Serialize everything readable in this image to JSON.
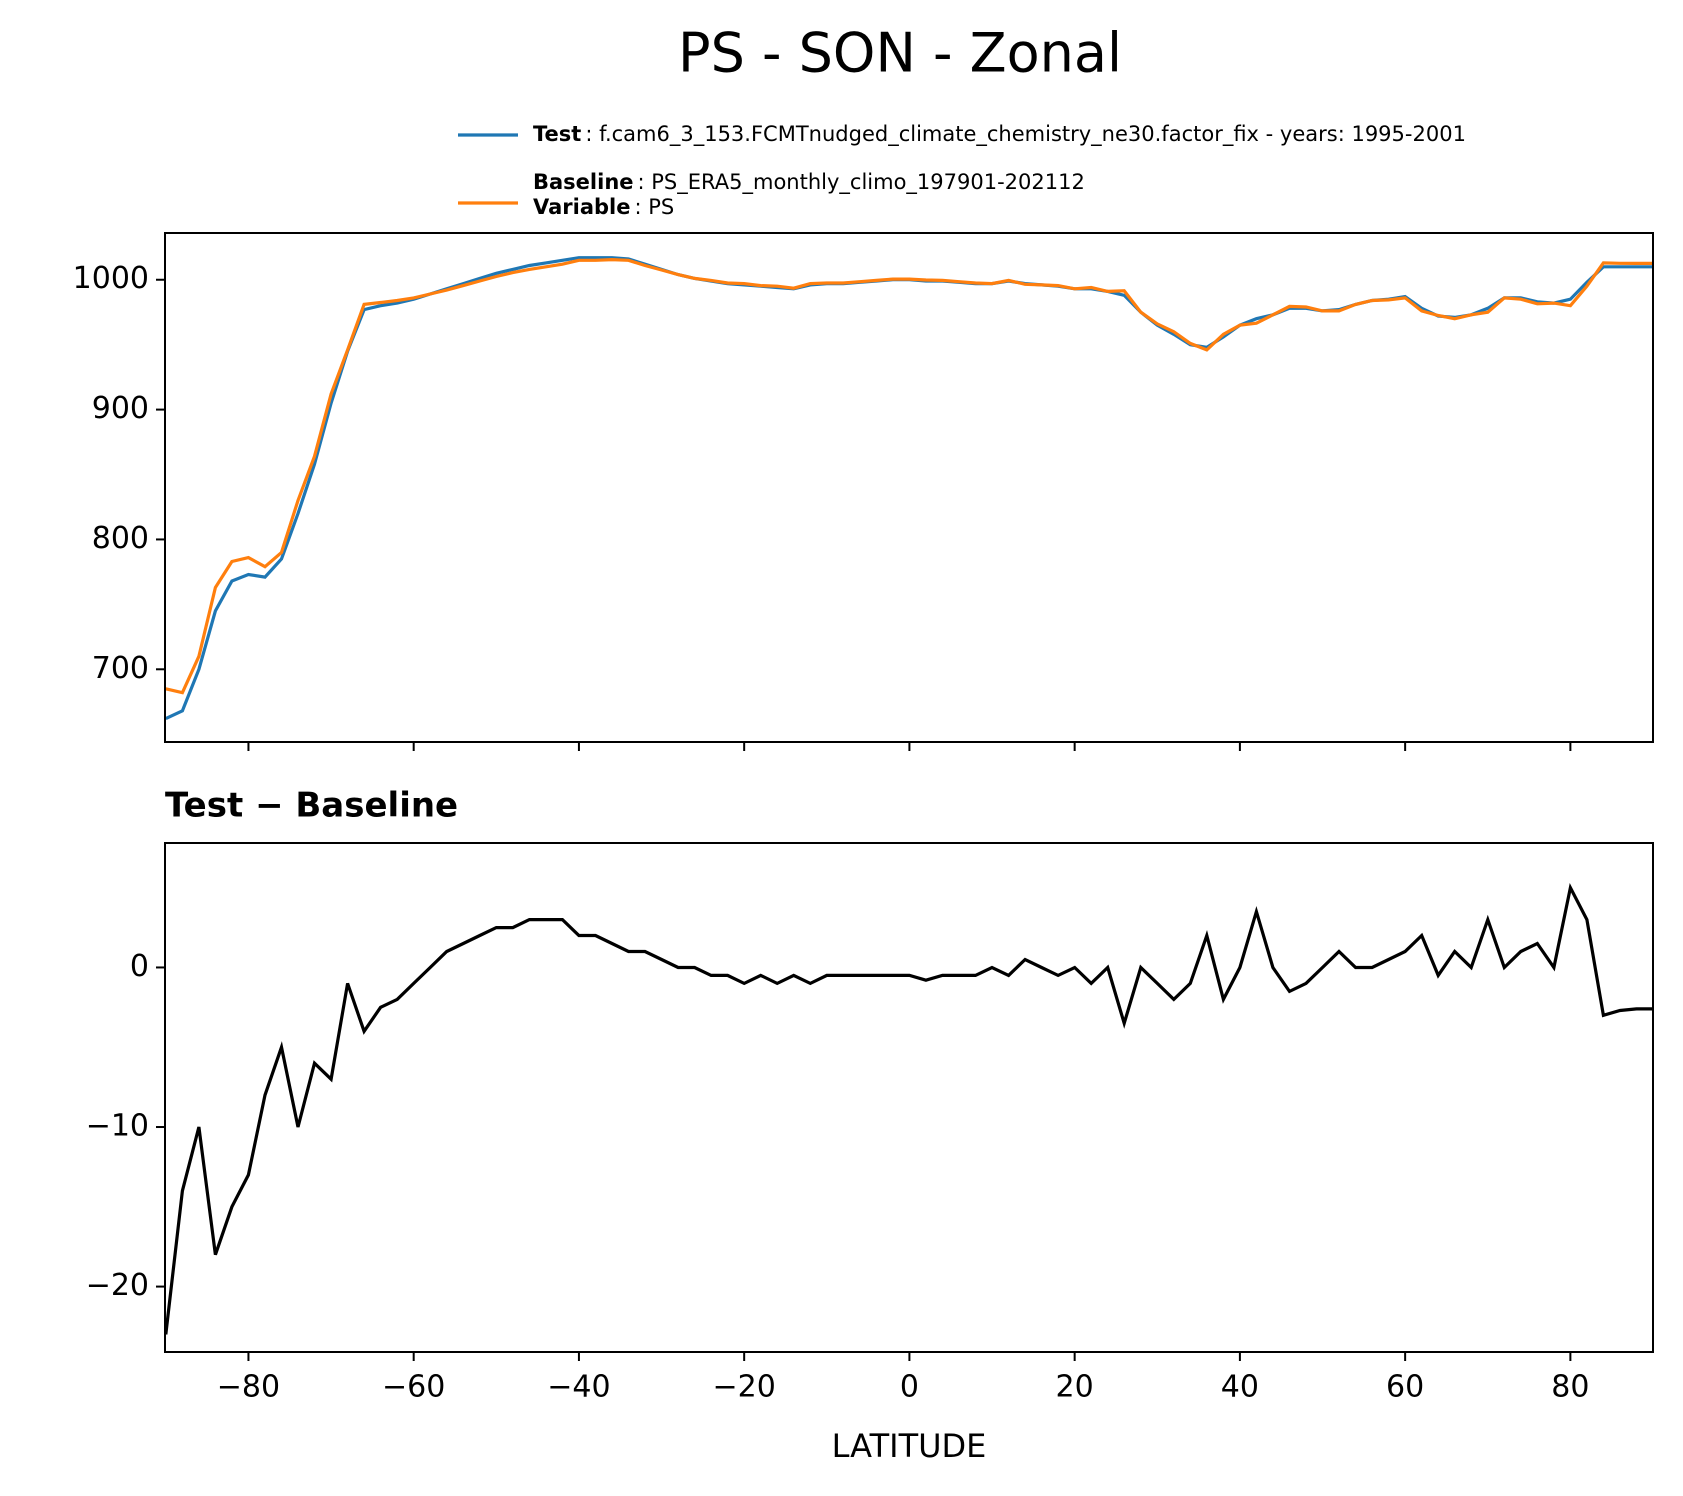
{
  "title": "PS - SON - Zonal",
  "chart_data": [
    {
      "type": "line",
      "xlim": [
        -90.1,
        90
      ],
      "ylim": [
        644,
        1036
      ],
      "yticks": [
        700,
        800,
        900,
        1000
      ],
      "xticks": [
        -80,
        -60,
        -40,
        -20,
        0,
        20,
        40,
        60,
        80
      ],
      "xtick_labels": false,
      "x": [
        -90,
        -88,
        -86,
        -84,
        -82,
        -80,
        -78,
        -76,
        -74,
        -72,
        -70,
        -68,
        -66,
        -64,
        -62,
        -60,
        -58,
        -56,
        -54,
        -52,
        -50,
        -48,
        -46,
        -44,
        -42,
        -40,
        -38,
        -36,
        -34,
        -32,
        -30,
        -28,
        -26,
        -24,
        -22,
        -20,
        -18,
        -16,
        -14,
        -12,
        -10,
        -8,
        -6,
        -4,
        -2,
        0,
        2,
        4,
        6,
        8,
        10,
        12,
        14,
        16,
        18,
        20,
        22,
        24,
        26,
        28,
        30,
        32,
        34,
        36,
        38,
        40,
        42,
        44,
        46,
        48,
        50,
        52,
        54,
        56,
        58,
        60,
        62,
        64,
        66,
        68,
        70,
        72,
        74,
        76,
        78,
        80,
        82,
        84,
        86,
        88,
        90
      ],
      "series": [
        {
          "name": "Test",
          "description": ": f.cam6_3_153.FCMTnudged_climate_chemistry_ne30.factor_fix - years: 1995-2001",
          "color": "#1f77b4",
          "values": [
            662,
            668,
            700,
            745,
            768,
            773,
            771,
            785,
            820,
            858,
            905,
            945,
            977,
            980,
            982,
            985,
            989,
            993,
            997,
            1001,
            1005,
            1008,
            1011,
            1013,
            1015,
            1017,
            1017,
            1017,
            1016,
            1012,
            1008,
            1004,
            1001,
            999,
            997,
            996,
            995,
            994,
            993,
            996,
            997,
            997,
            998,
            999,
            1000,
            1000,
            999,
            999,
            998,
            997,
            997,
            999,
            997,
            996,
            995,
            993,
            993,
            991,
            988,
            975,
            965,
            958,
            950,
            948,
            956,
            965,
            970,
            973,
            978,
            978,
            976,
            977,
            981,
            984,
            985,
            987,
            978,
            972,
            971,
            973,
            978,
            986,
            986,
            983,
            982,
            985,
            998,
            1010,
            1010,
            1010,
            1010
          ]
        },
        {
          "name": "Baseline",
          "description": ": PS_ERA5_monthly_climo_197901-202112",
          "color": "#ff7f0e",
          "values": [
            685,
            682,
            710,
            763,
            783,
            786,
            779,
            790,
            830,
            864,
            912,
            946,
            981,
            982.5,
            984,
            986,
            989,
            992,
            995.5,
            999,
            1002.5,
            1005.5,
            1008,
            1010,
            1012,
            1015,
            1015,
            1015.5,
            1015,
            1011,
            1007.5,
            1004,
            1001,
            999.5,
            997.5,
            997,
            995.5,
            995,
            993.5,
            997,
            997.5,
            997.5,
            998.5,
            999.5,
            1000.5,
            1000.5,
            999.8,
            999.5,
            998.5,
            997.5,
            997,
            999.5,
            996.5,
            996,
            995.5,
            993,
            994,
            991,
            991.5,
            975,
            966,
            960,
            951,
            946,
            958,
            965,
            966.5,
            973,
            979.5,
            979,
            976,
            976,
            981,
            984,
            984.5,
            986,
            976,
            972.5,
            970,
            973,
            975,
            986,
            985,
            981.5,
            982,
            980,
            995,
            1013,
            1012.7,
            1012.6,
            1012.6
          ]
        }
      ],
      "legend_notes": [
        {
          "key": "Variable",
          "text": ": PS"
        }
      ]
    },
    {
      "type": "line",
      "title": "Test − Baseline",
      "xlabel": "LATITUDE",
      "xlim": [
        -90.1,
        90
      ],
      "ylim": [
        -24.1,
        7.8
      ],
      "yticks": [
        {
          "value": -20,
          "label": "−20"
        },
        {
          "value": -10,
          "label": "−10"
        },
        0
      ],
      "xticks": [
        {
          "value": -80,
          "label": "−80"
        },
        {
          "value": -60,
          "label": "−60"
        },
        {
          "value": -40,
          "label": "−40"
        },
        {
          "value": -20,
          "label": "−20"
        },
        0,
        20,
        40,
        60,
        80
      ],
      "xtick_labels": true,
      "x": [
        -90,
        -88,
        -86,
        -84,
        -82,
        -80,
        -78,
        -76,
        -74,
        -72,
        -70,
        -68,
        -66,
        -64,
        -62,
        -60,
        -58,
        -56,
        -54,
        -52,
        -50,
        -48,
        -46,
        -44,
        -42,
        -40,
        -38,
        -36,
        -34,
        -32,
        -30,
        -28,
        -26,
        -24,
        -22,
        -20,
        -18,
        -16,
        -14,
        -12,
        -10,
        -8,
        -6,
        -4,
        -2,
        0,
        2,
        4,
        6,
        8,
        10,
        12,
        14,
        16,
        18,
        20,
        22,
        24,
        26,
        28,
        30,
        32,
        34,
        36,
        38,
        40,
        42,
        44,
        46,
        48,
        50,
        52,
        54,
        56,
        58,
        60,
        62,
        64,
        66,
        68,
        70,
        72,
        74,
        76,
        78,
        80,
        82,
        84,
        86,
        88,
        90
      ],
      "series": [
        {
          "color": "#000000",
          "values": [
            -23,
            -14,
            -10,
            -18,
            -15,
            -13,
            -8,
            -5,
            -10,
            -6,
            -7,
            -1,
            -4,
            -2.5,
            -2,
            -1,
            0,
            1,
            1.5,
            2,
            2.5,
            2.5,
            3,
            3,
            3,
            2,
            2,
            1.5,
            1,
            1,
            0.5,
            0,
            0,
            -0.5,
            -0.5,
            -1,
            -0.5,
            -1,
            -0.5,
            -1,
            -0.5,
            -0.5,
            -0.5,
            -0.5,
            -0.5,
            -0.5,
            -0.8,
            -0.5,
            -0.5,
            -0.5,
            0,
            -0.5,
            0.5,
            0,
            -0.5,
            0,
            -1,
            0,
            -3.5,
            0,
            -1,
            -2,
            -1,
            2,
            -2,
            0,
            3.5,
            0,
            -1.5,
            -1,
            0,
            1,
            0,
            0,
            0.5,
            1,
            2,
            -0.5,
            1,
            0,
            3,
            0,
            1,
            1.5,
            0,
            5,
            3,
            -3,
            -2.7,
            -2.6,
            -2.6
          ]
        }
      ]
    }
  ]
}
